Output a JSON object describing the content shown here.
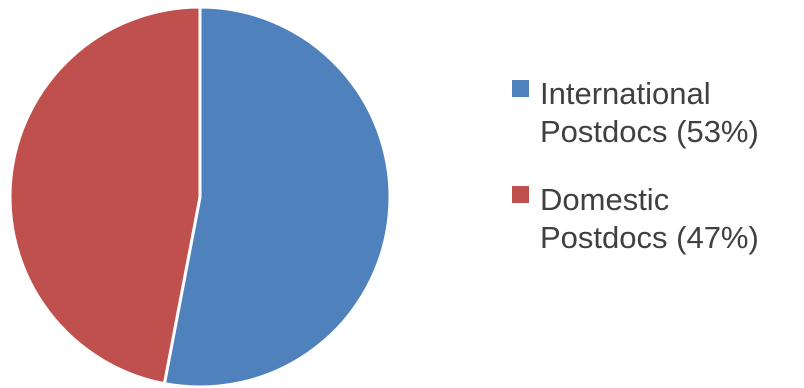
{
  "chart_data": {
    "type": "pie",
    "title": "",
    "slices": [
      {
        "label_lines": [
          "International",
          "Postdocs (53%)"
        ],
        "value": 53,
        "color": "#4f81bd"
      },
      {
        "label_lines": [
          "Domestic",
          "Postdocs (47%)"
        ],
        "value": 47,
        "color": "#c0504d"
      }
    ],
    "legend_position": "right",
    "start_angle_deg": 0,
    "direction": "clockwise"
  }
}
